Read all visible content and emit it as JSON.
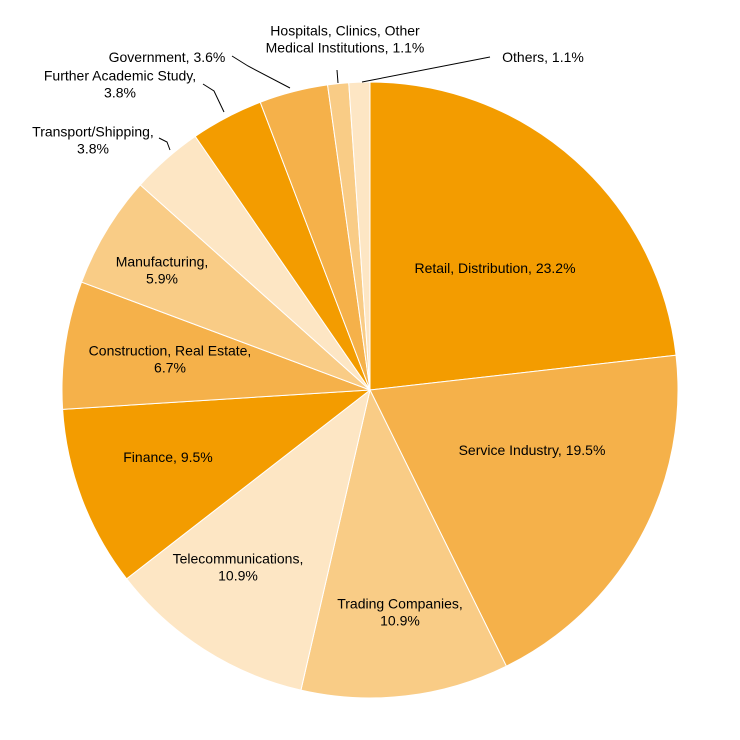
{
  "chart_data": {
    "type": "pie",
    "title": "",
    "start_angle_deg": 0,
    "direction": "clockwise",
    "slices": [
      {
        "label_lines": [
          "Retail, Distribution, 23.2%"
        ],
        "value": 23.2,
        "color": "#F39C00"
      },
      {
        "label_lines": [
          "Service Industry,  19.5%"
        ],
        "value": 19.5,
        "color": "#F5B14A"
      },
      {
        "label_lines": [
          "Trading Companies,",
          "10.9%"
        ],
        "value": 10.9,
        "color": "#F9CC86"
      },
      {
        "label_lines": [
          "Telecommunications,",
          "10.9%"
        ],
        "value": 10.9,
        "color": "#FDE6C4"
      },
      {
        "label_lines": [
          "Finance, 9.5%"
        ],
        "value": 9.5,
        "color": "#F39C00"
      },
      {
        "label_lines": [
          "Construction,  Real Estate,",
          "6.7%"
        ],
        "value": 6.7,
        "color": "#F5B14A"
      },
      {
        "label_lines": [
          "Manufacturing,",
          "5.9%"
        ],
        "value": 5.9,
        "color": "#F9CC86"
      },
      {
        "label_lines": [
          "Transport/Shipping,",
          "3.8%"
        ],
        "value": 3.8,
        "color": "#FDE6C4"
      },
      {
        "label_lines": [
          "Further Academic Study,",
          "3.8%"
        ],
        "value": 3.8,
        "color": "#F39C00"
      },
      {
        "label_lines": [
          "Government,  3.6%"
        ],
        "value": 3.6,
        "color": "#F5B14A"
      },
      {
        "label_lines": [
          "Hospitals, Clinics, Other",
          "Medical Institutions,  1.1%"
        ],
        "value": 1.1,
        "color": "#F9CC86"
      },
      {
        "label_lines": [
          "Others,  1.1%"
        ],
        "value": 1.1,
        "color": "#FDE6C4"
      }
    ]
  }
}
